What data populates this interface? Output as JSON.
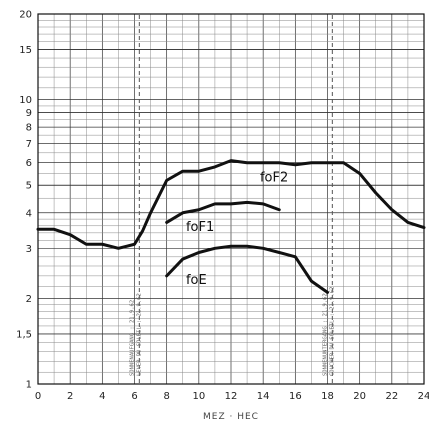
{
  "chart_data": {
    "type": "line",
    "title": "",
    "xlabel": "MEZ · HEC",
    "ylabel": "",
    "xlim": [
      0,
      24
    ],
    "ylim": [
      1,
      20
    ],
    "y_scale": "log",
    "grid": true,
    "x_ticks": [
      0,
      2,
      4,
      6,
      8,
      10,
      12,
      14,
      16,
      18,
      20,
      22,
      24
    ],
    "x_tick_labels": [
      "0",
      "2",
      "4",
      "6",
      "8",
      "10",
      "12",
      "14",
      "16",
      "18",
      "20",
      "22",
      "24"
    ],
    "y_ticks": [
      1,
      1.5,
      2,
      3,
      4,
      5,
      6,
      7,
      8,
      9,
      10,
      15,
      20
    ],
    "y_tick_labels": [
      "1",
      "1,5",
      "2",
      "3",
      "4",
      "5",
      "6",
      "7",
      "8",
      "9",
      "10",
      "15",
      "20"
    ],
    "series": [
      {
        "name": "foF2",
        "x": [
          0,
          1,
          2,
          3,
          4,
          5,
          6,
          6.5,
          7,
          8,
          9,
          10,
          11,
          12,
          13,
          14,
          15,
          16,
          17,
          18,
          19,
          20,
          21,
          22,
          23,
          24
        ],
        "y": [
          3.5,
          3.5,
          3.35,
          3.1,
          3.1,
          3.0,
          3.1,
          3.45,
          4.0,
          5.2,
          5.6,
          5.6,
          5.8,
          6.1,
          6.0,
          6.0,
          6.0,
          5.9,
          6.0,
          6.0,
          6.0,
          5.5,
          4.7,
          4.1,
          3.7,
          3.55
        ]
      },
      {
        "name": "foF1",
        "x": [
          8,
          9,
          10,
          11,
          12,
          13,
          14,
          15
        ],
        "y": [
          3.7,
          4.0,
          4.1,
          4.3,
          4.3,
          4.35,
          4.3,
          4.1
        ]
      },
      {
        "name": "foE",
        "x": [
          8,
          9,
          10,
          11,
          12,
          13,
          14,
          15,
          16,
          17,
          18
        ],
        "y": [
          2.4,
          2.75,
          2.9,
          3.0,
          3.05,
          3.05,
          3.0,
          2.9,
          2.8,
          2.3,
          2.1
        ]
      }
    ],
    "vertical_markers": [
      {
        "x": 6.3,
        "label_line1": "SONNENAUFGANG : 21.9.62",
        "label_line2": "LEVER DU SOLEIL : 21.9.62"
      },
      {
        "x": 18.3,
        "label_line1": "SONNENUNTERGANG : 21.9.62",
        "label_line2": "COUCHER DU SOLEIL : 21.9.62"
      }
    ]
  }
}
